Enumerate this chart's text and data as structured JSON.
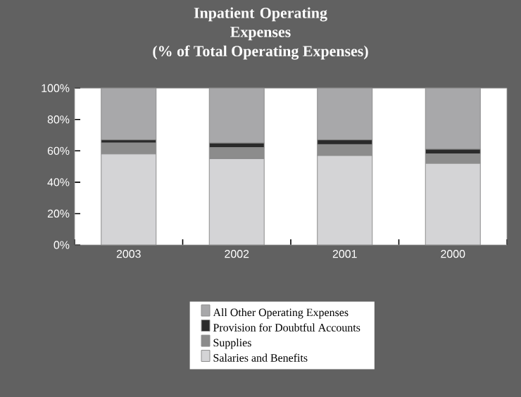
{
  "chart_data": {
    "type": "bar",
    "stacked": true,
    "title": "Inpatient Operating Expenses",
    "subtitle": "(% of Total Operating Expenses)",
    "categories": [
      "2003",
      "2002",
      "2001",
      "2000"
    ],
    "series": [
      {
        "name": "Salaries and Benefits",
        "color": "#d4d4d6",
        "values": [
          58,
          55,
          57,
          52
        ]
      },
      {
        "name": "Supplies",
        "color": "#8c8c8c",
        "values": [
          7,
          7,
          7,
          6
        ]
      },
      {
        "name": "Provision for Doubtful Accounts",
        "color": "#2a2a2a",
        "values": [
          2,
          3,
          3,
          3
        ]
      },
      {
        "name": "All Other Operating Expenses",
        "color": "#a8a8aa",
        "values": [
          33,
          35,
          33,
          39
        ]
      }
    ],
    "ylim": [
      0,
      100
    ],
    "yticks": [
      {
        "value": 0,
        "label": "0%"
      },
      {
        "value": 20,
        "label": "20%"
      },
      {
        "value": 40,
        "label": "40%"
      },
      {
        "value": 60,
        "label": "60%"
      },
      {
        "value": 80,
        "label": "80%"
      },
      {
        "value": 100,
        "label": "100%"
      }
    ],
    "legend": "bottom",
    "grid": false
  }
}
